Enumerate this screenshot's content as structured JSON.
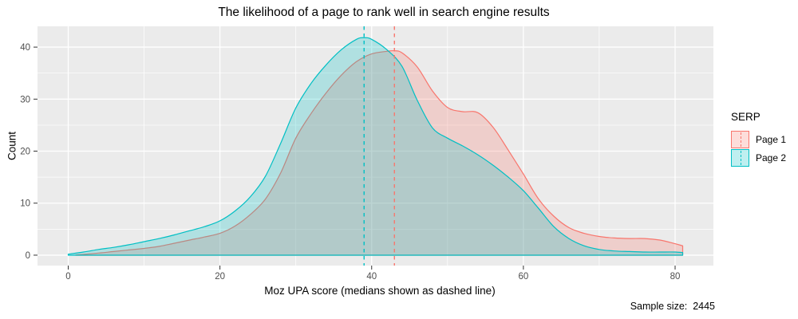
{
  "title": "The likelihood of a page to rank well in search engine results",
  "axes": {
    "x_label": "Moz UPA score (medians shown as dashed line)",
    "y_label": "Count"
  },
  "caption": {
    "text": "Sample size:  2445"
  },
  "legend": {
    "title": "SERP",
    "items": [
      {
        "label": "Page 1",
        "color": "#F8766D"
      },
      {
        "label": "Page 2",
        "color": "#00BFC4"
      }
    ]
  },
  "colors": {
    "panel_bg": "#EBEBEB",
    "grid": "#FFFFFF",
    "tick_text": "#4D4D4D",
    "tick_mark": "#333333",
    "page1": "#F8766D",
    "page2": "#00BFC4"
  },
  "chart_data": {
    "type": "area",
    "title": "The likelihood of a page to rank well in search engine results",
    "xlabel": "Moz UPA score (medians shown as dashed line)",
    "ylabel": "Count",
    "xlim": [
      -4.05,
      85.05
    ],
    "ylim": [
      -2,
      44
    ],
    "x_ticks": [
      0,
      20,
      40,
      60,
      80
    ],
    "x_minor_ticks": [
      10,
      30,
      50,
      70
    ],
    "y_ticks": [
      0,
      10,
      20,
      30,
      40
    ],
    "y_minor_ticks": [
      5,
      15,
      25,
      35
    ],
    "grid": true,
    "legend_title": "SERP",
    "legend_position": "right",
    "sample_size": 2445,
    "fill_alpha": 0.25,
    "series": [
      {
        "name": "Page 1",
        "color": "#F8766D",
        "median": 43,
        "median_line": "dashed",
        "x": [
          1,
          2,
          4,
          6,
          8,
          10,
          12,
          14,
          16,
          18,
          20,
          22,
          24,
          26,
          28,
          30,
          32,
          34,
          36,
          38,
          40,
          42,
          43,
          44,
          46,
          48,
          50,
          52,
          54,
          56,
          58,
          60,
          62,
          64,
          66,
          68,
          70,
          72,
          74,
          76,
          78,
          80,
          81
        ],
        "y": [
          0.05,
          0.15,
          0.4,
          0.7,
          1.0,
          1.3,
          1.7,
          2.3,
          2.9,
          3.5,
          4.2,
          5.6,
          7.8,
          10.8,
          15.8,
          22.5,
          27.2,
          31.2,
          34.6,
          37.2,
          38.7,
          39.2,
          39.3,
          38.9,
          36.2,
          31.6,
          28.4,
          27.6,
          27.4,
          24.6,
          20.2,
          15.6,
          10.8,
          7.5,
          5.3,
          4.2,
          3.6,
          3.3,
          3.2,
          3.2,
          2.9,
          2.2,
          1.8
        ]
      },
      {
        "name": "Page 2",
        "color": "#00BFC4",
        "median": 39,
        "median_line": "dashed",
        "x": [
          0,
          2,
          4,
          6,
          8,
          10,
          12,
          14,
          16,
          18,
          20,
          22,
          24,
          26,
          28,
          30,
          32,
          34,
          36,
          38,
          39,
          40,
          42,
          44,
          46,
          48,
          50,
          52,
          54,
          56,
          58,
          60,
          62,
          64,
          66,
          68,
          70,
          72,
          74,
          76,
          78,
          80,
          81
        ],
        "y": [
          0.2,
          0.6,
          1.1,
          1.5,
          2.0,
          2.6,
          3.2,
          3.9,
          4.7,
          5.5,
          6.6,
          8.5,
          11.2,
          15.2,
          21.5,
          28.3,
          33.0,
          36.6,
          39.5,
          41.5,
          41.8,
          41.5,
          39.5,
          36.3,
          29.8,
          24.5,
          22.5,
          21.0,
          19.3,
          17.3,
          15.0,
          12.4,
          9.0,
          5.5,
          3.2,
          1.8,
          1.1,
          0.8,
          0.7,
          0.6,
          0.6,
          0.6,
          0.5
        ]
      }
    ]
  }
}
